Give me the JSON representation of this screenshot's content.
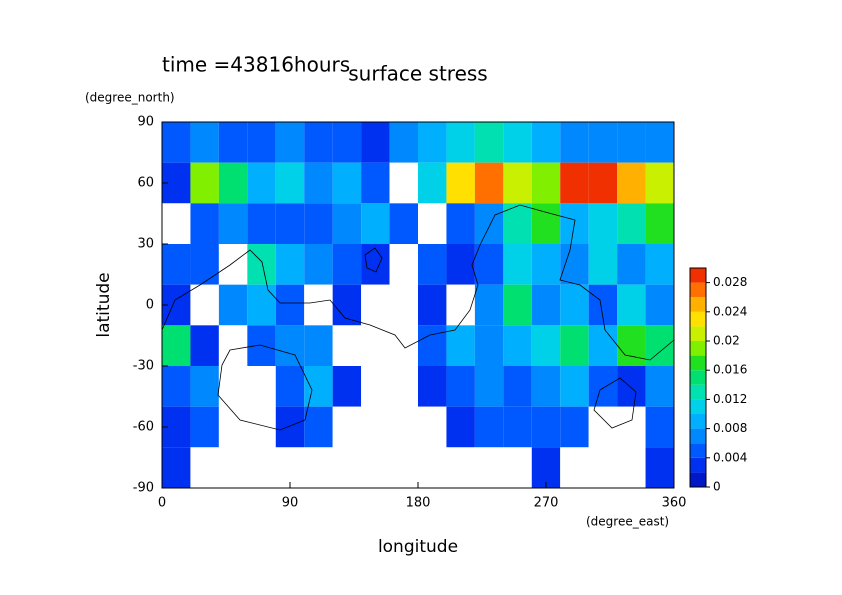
{
  "chart_data": {
    "type": "contour",
    "title": "surface stress",
    "subtitle": "time =43816hours",
    "xlabel": "longitude",
    "ylabel": "latitude",
    "xunit": "(degree_east)",
    "yunit": "(degree_north)",
    "xlim": [
      0,
      360
    ],
    "xticks": [
      0,
      90,
      180,
      270,
      360
    ],
    "ylim": [
      -90,
      90
    ],
    "yticks": [
      -90,
      -60,
      -30,
      0,
      30,
      60,
      90
    ],
    "x": [
      10,
      30,
      50,
      70,
      90,
      110,
      130,
      150,
      170,
      190,
      210,
      230,
      250,
      270,
      290,
      310,
      330,
      350
    ],
    "y": [
      80,
      60,
      40,
      20,
      0,
      -20,
      -40,
      -60,
      -80
    ],
    "z": [
      [
        0.004,
        0.006,
        0.004,
        0.004,
        0.006,
        0.004,
        0.004,
        0.002,
        0.006,
        0.008,
        0.01,
        0.012,
        0.01,
        0.008,
        0.006,
        0.006,
        0.006,
        0.006
      ],
      [
        0.002,
        0.018,
        0.014,
        0.008,
        0.01,
        0.006,
        0.008,
        0.004,
        0,
        0.01,
        0.022,
        0.026,
        0.02,
        0.018,
        0.03,
        0.028,
        0.024,
        0.02
      ],
      [
        0,
        0.004,
        0.006,
        0.004,
        0.004,
        0.004,
        0.006,
        0.008,
        0.004,
        0,
        0.004,
        0.006,
        0.012,
        0.016,
        0.008,
        0.01,
        0.012,
        0.016
      ],
      [
        0.004,
        0.004,
        0,
        0.012,
        0.008,
        0.006,
        0.004,
        0.002,
        0,
        0.004,
        0.002,
        0.004,
        0.01,
        0.008,
        0.006,
        0.01,
        0.006,
        0.008
      ],
      [
        0.002,
        0,
        0.006,
        0.008,
        0.004,
        0,
        0.002,
        0,
        0,
        0.002,
        0,
        0.006,
        0.014,
        0.006,
        0.008,
        0.004,
        0.01,
        0.006
      ],
      [
        0.014,
        0.002,
        0,
        0.004,
        0.006,
        0.006,
        0,
        0,
        0,
        0.004,
        0.008,
        0.006,
        0.008,
        0.01,
        0.014,
        0.008,
        0.016,
        0.014
      ],
      [
        0.004,
        0.006,
        0,
        0,
        0.004,
        0.008,
        0.002,
        0,
        0,
        0.002,
        0.004,
        0.006,
        0.004,
        0.006,
        0.008,
        0.004,
        0.002,
        0.006
      ],
      [
        0.002,
        0.004,
        0,
        0,
        0.002,
        0.004,
        0,
        0,
        0,
        0,
        0.002,
        0.004,
        0.004,
        0.004,
        0.004,
        0,
        0,
        0.004
      ],
      [
        0.002,
        0,
        0,
        0,
        0,
        0,
        0,
        0,
        0,
        0,
        0,
        0,
        0,
        0.002,
        0,
        0,
        0,
        0.002
      ]
    ],
    "zlim": [
      0,
      0.03
    ],
    "zticks": [
      0,
      0.004,
      0.008,
      0.012,
      0.016,
      0.02,
      0.024,
      0.028
    ],
    "colors": [
      "#0018c8",
      "#0030f0",
      "#0058ff",
      "#0088ff",
      "#00b0ff",
      "#00d0e8",
      "#00e0b0",
      "#00e070",
      "#20e020",
      "#80f000",
      "#c8f000",
      "#ffe000",
      "#ffb000",
      "#ff7000",
      "#f03000"
    ]
  }
}
